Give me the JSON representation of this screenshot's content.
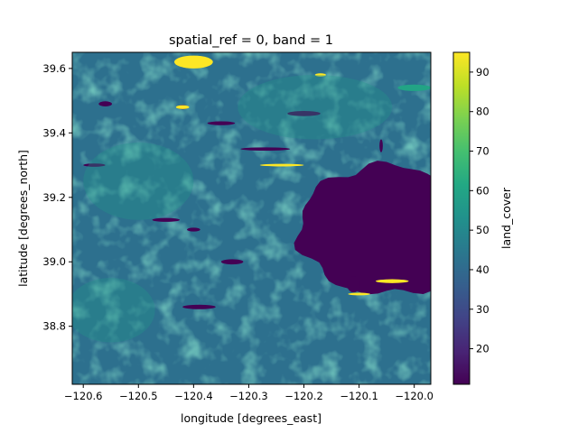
{
  "chart_data": {
    "type": "heatmap",
    "title": "spatial_ref = 0, band = 1",
    "xlabel": "longitude [degrees_east]",
    "ylabel": "latitude [degrees_north]",
    "colorbar_label": "land_cover",
    "colormap": "viridis",
    "xlim": [
      -120.62,
      -119.97
    ],
    "ylim": [
      38.62,
      39.65
    ],
    "clim": [
      11,
      95
    ],
    "x_ticks": [
      -120.6,
      -120.5,
      -120.4,
      -120.3,
      -120.2,
      -120.1,
      -120.0
    ],
    "x_tick_labels": [
      "−120.6",
      "−120.5",
      "−120.4",
      "−120.3",
      "−120.2",
      "−120.1",
      "−120.0"
    ],
    "y_ticks": [
      38.8,
      39.0,
      39.2,
      39.4,
      39.6
    ],
    "y_tick_labels": [
      "38.8",
      "39.0",
      "39.2",
      "39.4",
      "39.6"
    ],
    "colorbar_ticks": [
      20,
      30,
      40,
      50,
      60,
      70,
      80,
      90
    ],
    "colorbar_tick_labels": [
      "20",
      "30",
      "40",
      "50",
      "60",
      "70",
      "80",
      "90"
    ],
    "dominant_value": 42,
    "features": [
      {
        "value": 11,
        "shape": "lake",
        "lon": -120.05,
        "lat": 39.1,
        "lon_extent": 0.16,
        "lat_extent": 0.2
      },
      {
        "value": 11,
        "shape": "lake",
        "lon": -120.11,
        "lat": 38.93,
        "lon_extent": 0.012,
        "lat_extent": 0.025
      },
      {
        "value": 11,
        "shape": "lake",
        "lon": -120.06,
        "lat": 39.36,
        "lon_extent": 0.003,
        "lat_extent": 0.02
      },
      {
        "value": 11,
        "shape": "lake",
        "lon": -120.2,
        "lat": 39.46,
        "lon_extent": 0.03,
        "lat_extent": 0.008
      },
      {
        "value": 11,
        "shape": "lake",
        "lon": -120.35,
        "lat": 39.43,
        "lon_extent": 0.025,
        "lat_extent": 0.006
      },
      {
        "value": 11,
        "shape": "lake",
        "lon": -120.27,
        "lat": 39.35,
        "lon_extent": 0.045,
        "lat_extent": 0.005
      },
      {
        "value": 11,
        "shape": "lake",
        "lon": -120.56,
        "lat": 39.49,
        "lon_extent": 0.012,
        "lat_extent": 0.008
      },
      {
        "value": 11,
        "shape": "lake",
        "lon": -120.42,
        "lat": 39.48,
        "lon_extent": 0.01,
        "lat_extent": 0.007
      },
      {
        "value": 11,
        "shape": "lake",
        "lon": -120.4,
        "lat": 39.1,
        "lon_extent": 0.012,
        "lat_extent": 0.006
      },
      {
        "value": 11,
        "shape": "lake",
        "lon": -120.45,
        "lat": 39.13,
        "lon_extent": 0.025,
        "lat_extent": 0.006
      },
      {
        "value": 11,
        "shape": "lake",
        "lon": -120.33,
        "lat": 39.0,
        "lon_extent": 0.02,
        "lat_extent": 0.008
      },
      {
        "value": 11,
        "shape": "lake",
        "lon": -120.39,
        "lat": 38.86,
        "lon_extent": 0.03,
        "lat_extent": 0.007
      },
      {
        "value": 11,
        "shape": "lake",
        "lon": -120.58,
        "lat": 39.3,
        "lon_extent": 0.02,
        "lat_extent": 0.005
      },
      {
        "value": 95,
        "shape": "patch",
        "lon": -120.4,
        "lat": 39.62,
        "lon_extent": 0.035,
        "lat_extent": 0.02
      },
      {
        "value": 95,
        "shape": "patch",
        "lon": -120.17,
        "lat": 39.58,
        "lon_extent": 0.01,
        "lat_extent": 0.005
      },
      {
        "value": 95,
        "shape": "patch",
        "lon": -120.42,
        "lat": 39.48,
        "lon_extent": 0.012,
        "lat_extent": 0.006
      },
      {
        "value": 95,
        "shape": "patch",
        "lon": -120.24,
        "lat": 39.3,
        "lon_extent": 0.04,
        "lat_extent": 0.004
      },
      {
        "value": 95,
        "shape": "patch",
        "lon": -120.1,
        "lat": 38.9,
        "lon_extent": 0.02,
        "lat_extent": 0.004
      },
      {
        "value": 95,
        "shape": "patch",
        "lon": -120.04,
        "lat": 38.94,
        "lon_extent": 0.03,
        "lat_extent": 0.006
      },
      {
        "value": 60,
        "shape": "patch",
        "lon": -120.0,
        "lat": 39.54,
        "lon_extent": 0.03,
        "lat_extent": 0.01
      },
      {
        "value": 55,
        "shape": "region",
        "lon": -120.5,
        "lat": 39.25,
        "lon_extent": 0.1,
        "lat_extent": 0.12
      },
      {
        "value": 55,
        "shape": "region",
        "lon": -120.18,
        "lat": 39.48,
        "lon_extent": 0.14,
        "lat_extent": 0.1
      },
      {
        "value": 55,
        "shape": "region",
        "lon": -120.55,
        "lat": 38.85,
        "lon_extent": 0.08,
        "lat_extent": 0.1
      }
    ]
  }
}
